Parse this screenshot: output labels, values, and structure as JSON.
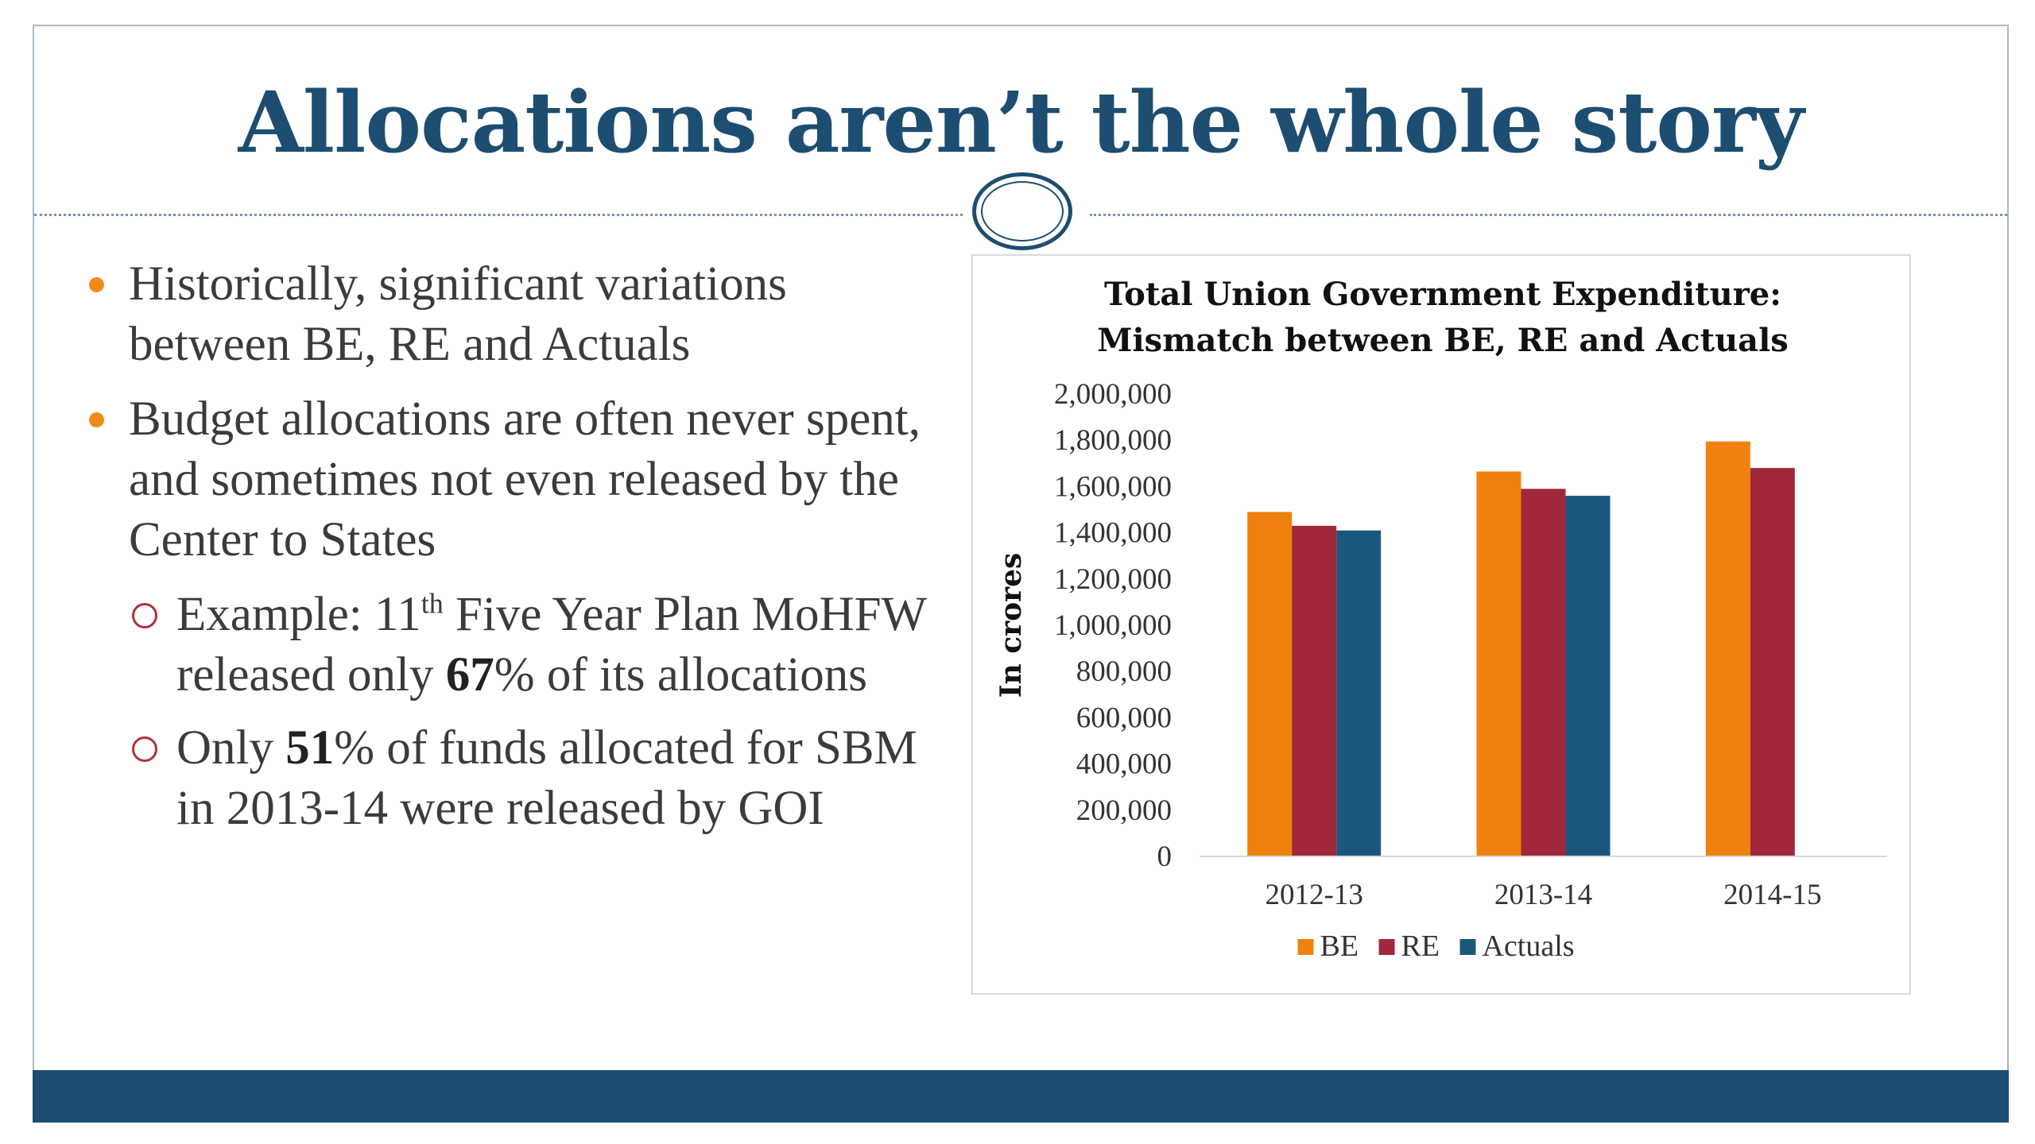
{
  "slide": {
    "title": "Allocations aren’t the whole story",
    "colors": {
      "accent": "#1d4e71",
      "bullet": "#f28a1b",
      "sub_bullet": "#b0323a"
    }
  },
  "bullets": [
    {
      "text": "Historically, significant variations between BE, RE and Actuals"
    },
    {
      "text": "Budget allocations are often never spent, and sometimes not even released by the Center to States"
    }
  ],
  "sub_bullets": {
    "ex1": {
      "prefix": "Example: 11",
      "sup": "th",
      "middle": " Five Year Plan MoHFW released only ",
      "bold": "67",
      "suffix": "% of its allocations"
    },
    "ex2": {
      "prefix": "Only ",
      "bold": "51",
      "suffix": "% of  funds allocated for SBM in 2013-14 were released by GOI"
    }
  },
  "chart_data": {
    "type": "bar",
    "title": "Total Union Government Expenditure:",
    "subtitle": "Mismatch between BE, RE and Actuals",
    "xlabel": "",
    "ylabel": "In crores",
    "ylim": [
      0,
      2000000
    ],
    "yticks": [
      0,
      200000,
      400000,
      600000,
      800000,
      1000000,
      1200000,
      1400000,
      1600000,
      1800000,
      2000000
    ],
    "ytick_labels": [
      "0",
      "200,000",
      "400,000",
      "600,000",
      "800,000",
      "1,000,000",
      "1,200,000",
      "1,400,000",
      "1,600,000",
      "1,800,000",
      "2,000,000"
    ],
    "categories": [
      "2012-13",
      "2013-14",
      "2014-15"
    ],
    "series": [
      {
        "name": "BE",
        "color": "#f0810f",
        "values": [
          1490000,
          1665000,
          1795000
        ]
      },
      {
        "name": "RE",
        "color": "#a0283a",
        "values": [
          1430000,
          1590000,
          1680000
        ]
      },
      {
        "name": "Actuals",
        "color": "#1b577d",
        "values": [
          1410000,
          1560000,
          null
        ]
      }
    ],
    "grid": false,
    "legend_position": "bottom"
  }
}
